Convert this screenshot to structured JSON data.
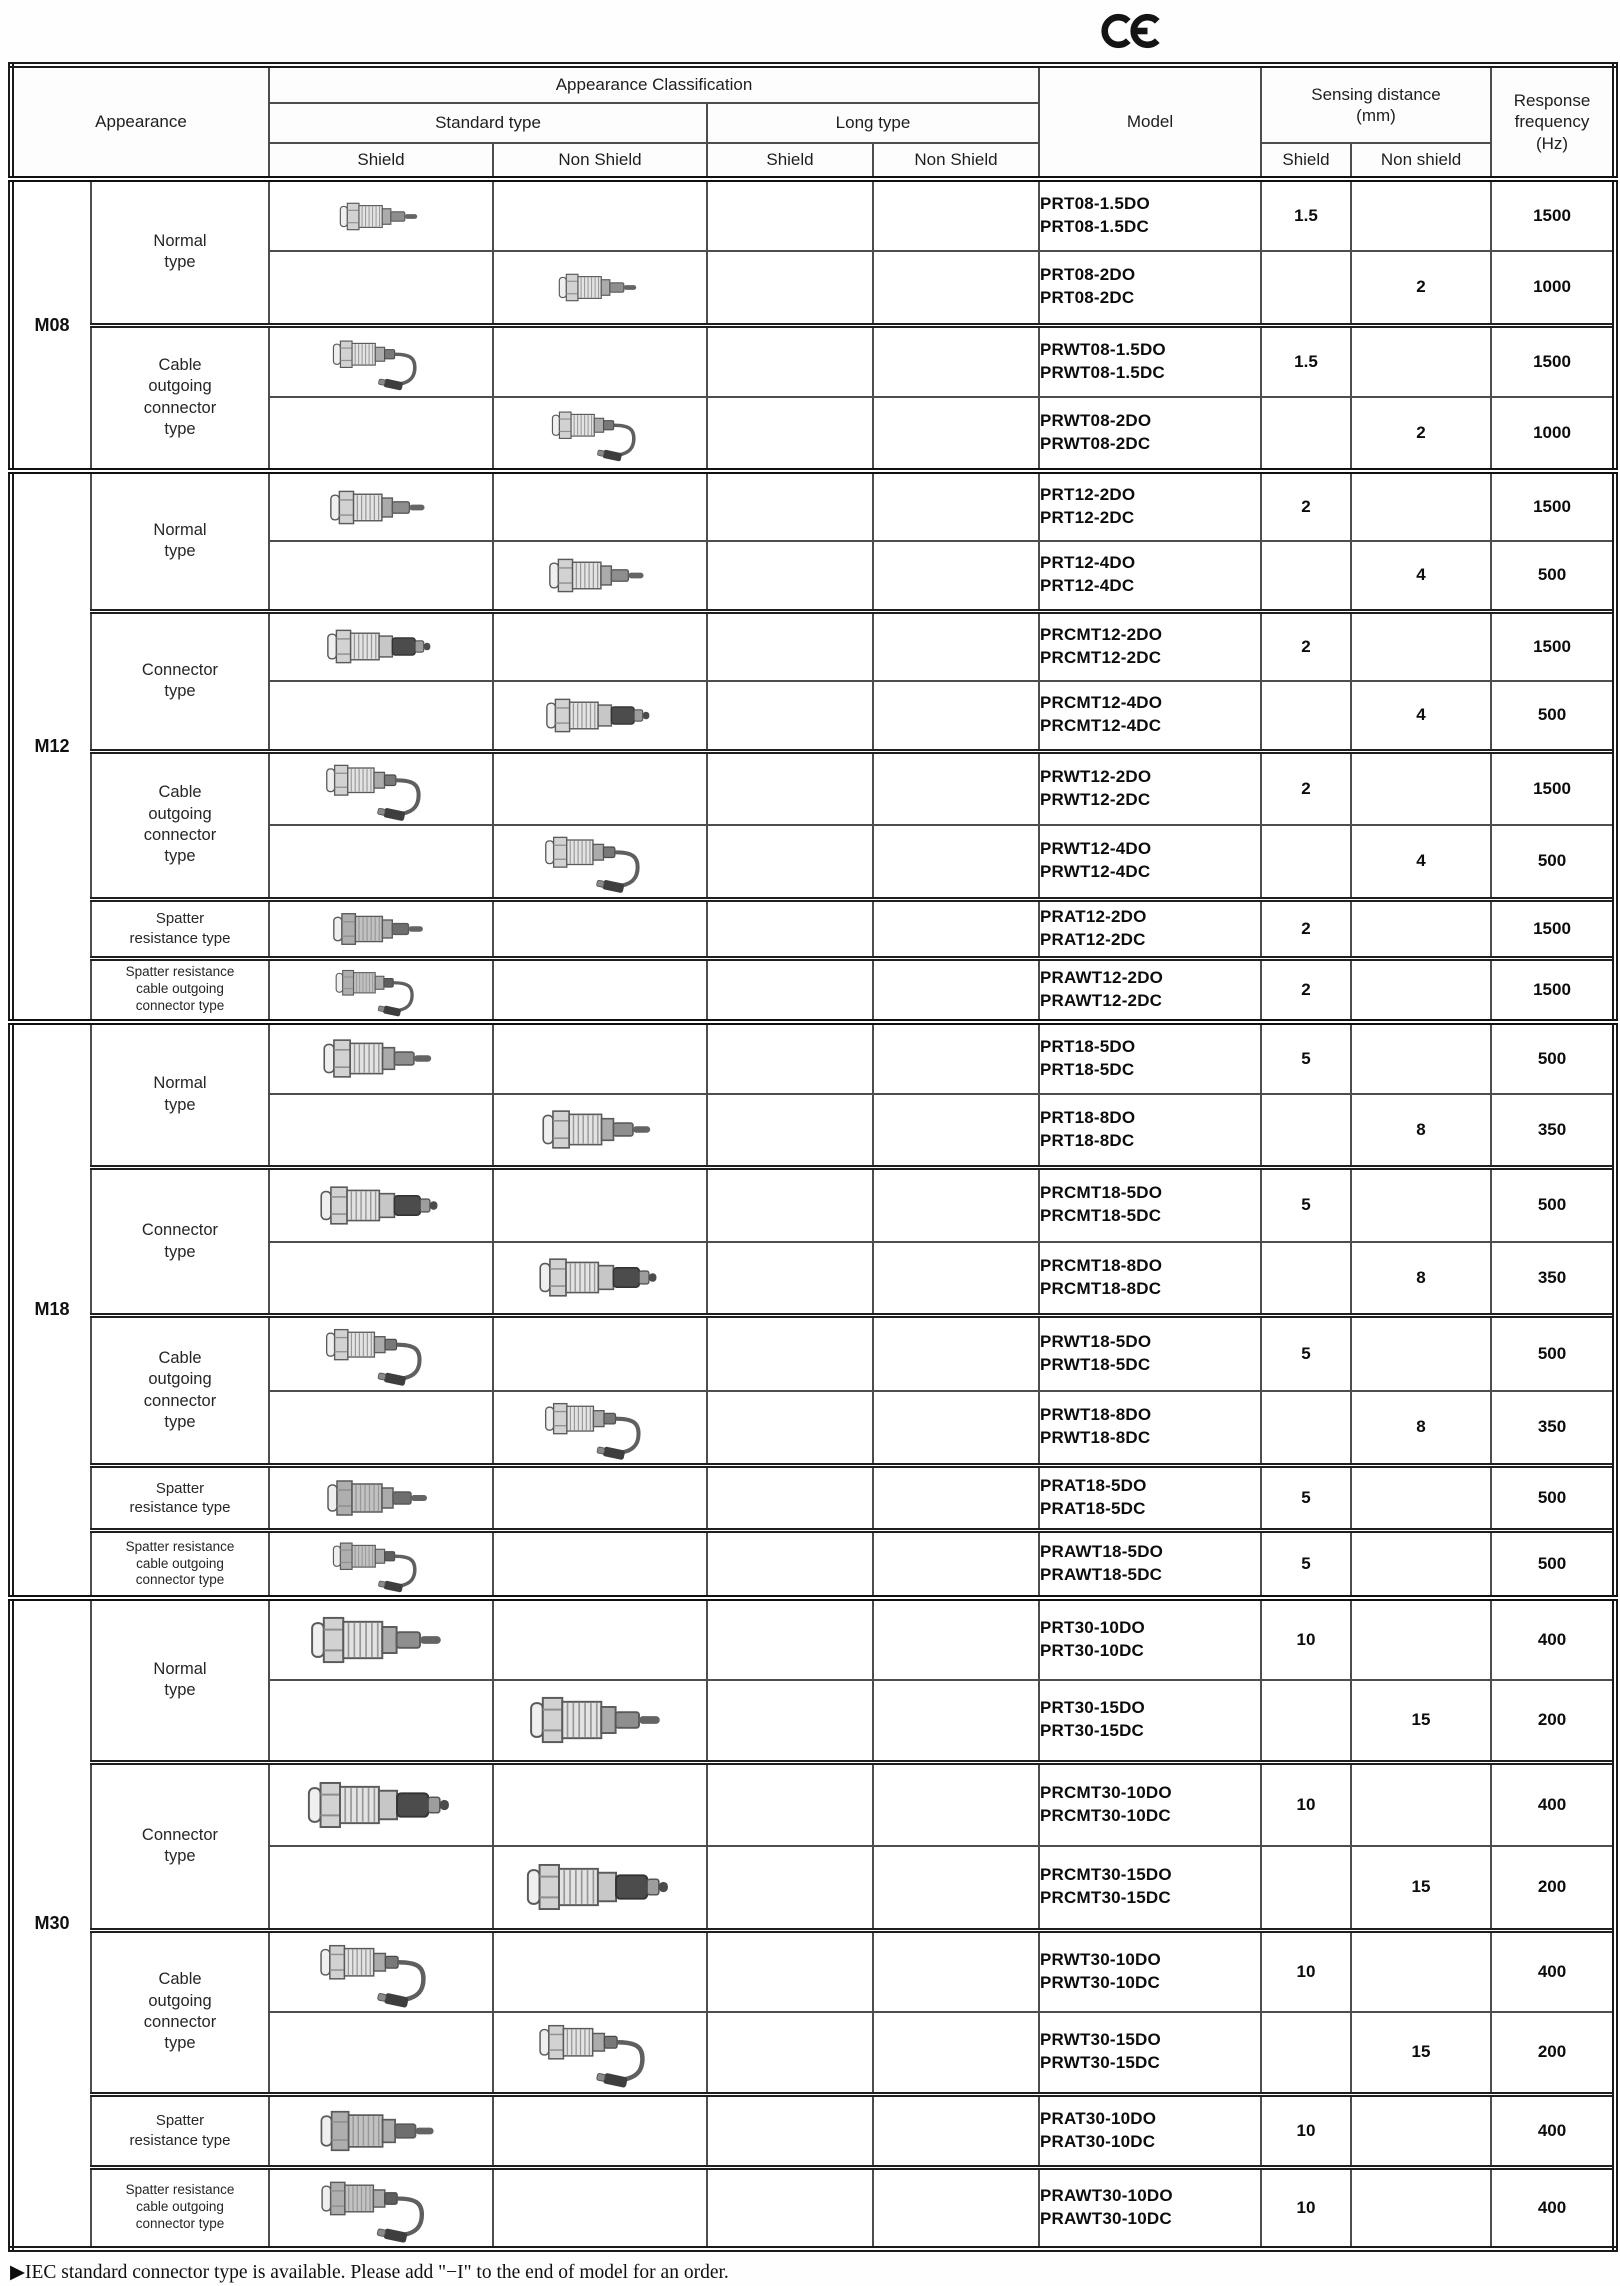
{
  "ce_mark": "CE",
  "header": {
    "appearance": "Appearance",
    "appearance_classification": "Appearance Classification",
    "standard_type": "Standard type",
    "long_type": "Long type",
    "shield": "Shield",
    "non_shield": "Non Shield",
    "model": "Model",
    "sensing_distance": "Sensing distance\n(mm)",
    "sensing_shield": "Shield",
    "sensing_non_shield": "Non shield",
    "response_frequency": "Response\nfrequency\n(Hz)"
  },
  "groups": [
    {
      "size": "M08",
      "types": [
        {
          "label": "Normal\ntype",
          "rows": [
            {
              "models": [
                "PRT08-1.5DO",
                "PRT08-1.5DC"
              ],
              "image_col": "standard_shield",
              "image_kind": "plain-sensor-icon",
              "shield": "1.5",
              "non_shield": "",
              "frequency": "1500"
            },
            {
              "models": [
                "PRT08-2DO",
                "PRT08-2DC"
              ],
              "image_col": "standard_non_shield",
              "image_kind": "plain-sensor-icon",
              "shield": "",
              "non_shield": "2",
              "frequency": "1000"
            }
          ]
        },
        {
          "label": "Cable\noutgoing\nconnector\ntype",
          "rows": [
            {
              "models": [
                "PRWT08-1.5DO",
                "PRWT08-1.5DC"
              ],
              "image_col": "standard_shield",
              "image_kind": "cable-sensor-icon",
              "shield": "1.5",
              "non_shield": "",
              "frequency": "1500"
            },
            {
              "models": [
                "PRWT08-2DO",
                "PRWT08-2DC"
              ],
              "image_col": "standard_non_shield",
              "image_kind": "cable-sensor-icon",
              "shield": "",
              "non_shield": "2",
              "frequency": "1000"
            }
          ]
        }
      ]
    },
    {
      "size": "M12",
      "types": [
        {
          "label": "Normal\ntype",
          "rows": [
            {
              "models": [
                "PRT12-2DO",
                "PRT12-2DC"
              ],
              "image_col": "standard_shield",
              "image_kind": "plain-sensor-icon",
              "shield": "2",
              "non_shield": "",
              "frequency": "1500"
            },
            {
              "models": [
                "PRT12-4DO",
                "PRT12-4DC"
              ],
              "image_col": "standard_non_shield",
              "image_kind": "plain-sensor-icon",
              "shield": "",
              "non_shield": "4",
              "frequency": "500"
            }
          ]
        },
        {
          "label": "Connector\ntype",
          "rows": [
            {
              "models": [
                "PRCMT12-2DO",
                "PRCMT12-2DC"
              ],
              "image_col": "standard_shield",
              "image_kind": "connector-sensor-icon",
              "shield": "2",
              "non_shield": "",
              "frequency": "1500"
            },
            {
              "models": [
                "PRCMT12-4DO",
                "PRCMT12-4DC"
              ],
              "image_col": "standard_non_shield",
              "image_kind": "connector-sensor-icon",
              "shield": "",
              "non_shield": "4",
              "frequency": "500"
            }
          ]
        },
        {
          "label": "Cable\noutgoing\nconnector\ntype",
          "rows": [
            {
              "models": [
                "PRWT12-2DO",
                "PRWT12-2DC"
              ],
              "image_col": "standard_shield",
              "image_kind": "cable-sensor-icon",
              "shield": "2",
              "non_shield": "",
              "frequency": "1500"
            },
            {
              "models": [
                "PRWT12-4DO",
                "PRWT12-4DC"
              ],
              "image_col": "standard_non_shield",
              "image_kind": "cable-sensor-icon",
              "shield": "",
              "non_shield": "4",
              "frequency": "500"
            }
          ]
        },
        {
          "label": "Spatter\nresistance type",
          "rows": [
            {
              "models": [
                "PRAT12-2DO",
                "PRAT12-2DC"
              ],
              "image_col": "standard_shield",
              "image_kind": "spatter-sensor-icon",
              "shield": "2",
              "non_shield": "",
              "frequency": "1500"
            }
          ]
        },
        {
          "label": "Spatter resistance\ncable outgoing\nconnector type",
          "rows": [
            {
              "models": [
                "PRAWT12-2DO",
                "PRAWT12-2DC"
              ],
              "image_col": "standard_shield",
              "image_kind": "spatter-cable-sensor-icon",
              "shield": "2",
              "non_shield": "",
              "frequency": "1500"
            }
          ]
        }
      ]
    },
    {
      "size": "M18",
      "types": [
        {
          "label": "Normal\ntype",
          "rows": [
            {
              "models": [
                "PRT18-5DO",
                "PRT18-5DC"
              ],
              "image_col": "standard_shield",
              "image_kind": "plain-sensor-icon",
              "shield": "5",
              "non_shield": "",
              "frequency": "500"
            },
            {
              "models": [
                "PRT18-8DO",
                "PRT18-8DC"
              ],
              "image_col": "standard_non_shield",
              "image_kind": "plain-sensor-icon",
              "shield": "",
              "non_shield": "8",
              "frequency": "350"
            }
          ]
        },
        {
          "label": "Connector\ntype",
          "rows": [
            {
              "models": [
                "PRCMT18-5DO",
                "PRCMT18-5DC"
              ],
              "image_col": "standard_shield",
              "image_kind": "connector-sensor-icon",
              "shield": "5",
              "non_shield": "",
              "frequency": "500"
            },
            {
              "models": [
                "PRCMT18-8DO",
                "PRCMT18-8DC"
              ],
              "image_col": "standard_non_shield",
              "image_kind": "connector-sensor-icon",
              "shield": "",
              "non_shield": "8",
              "frequency": "350"
            }
          ]
        },
        {
          "label": "Cable\noutgoing\nconnector\ntype",
          "rows": [
            {
              "models": [
                "PRWT18-5DO",
                "PRWT18-5DC"
              ],
              "image_col": "standard_shield",
              "image_kind": "cable-sensor-icon",
              "shield": "5",
              "non_shield": "",
              "frequency": "500"
            },
            {
              "models": [
                "PRWT18-8DO",
                "PRWT18-8DC"
              ],
              "image_col": "standard_non_shield",
              "image_kind": "cable-sensor-icon",
              "shield": "",
              "non_shield": "8",
              "frequency": "350"
            }
          ]
        },
        {
          "label": "Spatter\nresistance type",
          "rows": [
            {
              "models": [
                "PRAT18-5DO",
                "PRAT18-5DC"
              ],
              "image_col": "standard_shield",
              "image_kind": "spatter-sensor-icon",
              "shield": "5",
              "non_shield": "",
              "frequency": "500"
            }
          ]
        },
        {
          "label": "Spatter resistance\ncable outgoing\nconnector type",
          "rows": [
            {
              "models": [
                "PRAWT18-5DO",
                "PRAWT18-5DC"
              ],
              "image_col": "standard_shield",
              "image_kind": "spatter-cable-sensor-icon",
              "shield": "5",
              "non_shield": "",
              "frequency": "500"
            }
          ]
        }
      ]
    },
    {
      "size": "M30",
      "types": [
        {
          "label": "Normal\ntype",
          "rows": [
            {
              "models": [
                "PRT30-10DO",
                "PRT30-10DC"
              ],
              "image_col": "standard_shield",
              "image_kind": "plain-sensor-icon",
              "shield": "10",
              "non_shield": "",
              "frequency": "400"
            },
            {
              "models": [
                "PRT30-15DO",
                "PRT30-15DC"
              ],
              "image_col": "standard_non_shield",
              "image_kind": "plain-sensor-icon",
              "shield": "",
              "non_shield": "15",
              "frequency": "200"
            }
          ]
        },
        {
          "label": "Connector\ntype",
          "rows": [
            {
              "models": [
                "PRCMT30-10DO",
                "PRCMT30-10DC"
              ],
              "image_col": "standard_shield",
              "image_kind": "connector-sensor-icon",
              "shield": "10",
              "non_shield": "",
              "frequency": "400"
            },
            {
              "models": [
                "PRCMT30-15DO",
                "PRCMT30-15DC"
              ],
              "image_col": "standard_non_shield",
              "image_kind": "connector-sensor-icon",
              "shield": "",
              "non_shield": "15",
              "frequency": "200"
            }
          ]
        },
        {
          "label": "Cable\noutgoing\nconnector\ntype",
          "rows": [
            {
              "models": [
                "PRWT30-10DO",
                "PRWT30-10DC"
              ],
              "image_col": "standard_shield",
              "image_kind": "cable-sensor-icon",
              "shield": "10",
              "non_shield": "",
              "frequency": "400"
            },
            {
              "models": [
                "PRWT30-15DO",
                "PRWT30-15DC"
              ],
              "image_col": "standard_non_shield",
              "image_kind": "cable-sensor-icon",
              "shield": "",
              "non_shield": "15",
              "frequency": "200"
            }
          ]
        },
        {
          "label": "Spatter\nresistance type",
          "rows": [
            {
              "models": [
                "PRAT30-10DO",
                "PRAT30-10DC"
              ],
              "image_col": "standard_shield",
              "image_kind": "spatter-sensor-icon",
              "shield": "10",
              "non_shield": "",
              "frequency": "400"
            }
          ]
        },
        {
          "label": "Spatter resistance\ncable outgoing\nconnector type",
          "rows": [
            {
              "models": [
                "PRAWT30-10DO",
                "PRAWT30-10DC"
              ],
              "image_col": "standard_shield",
              "image_kind": "spatter-cable-sensor-icon",
              "shield": "10",
              "non_shield": "",
              "frequency": "400"
            }
          ]
        }
      ]
    }
  ],
  "footer_note": "▶IEC standard connector type is available. Please add \"−I\" to the end of model for an order."
}
